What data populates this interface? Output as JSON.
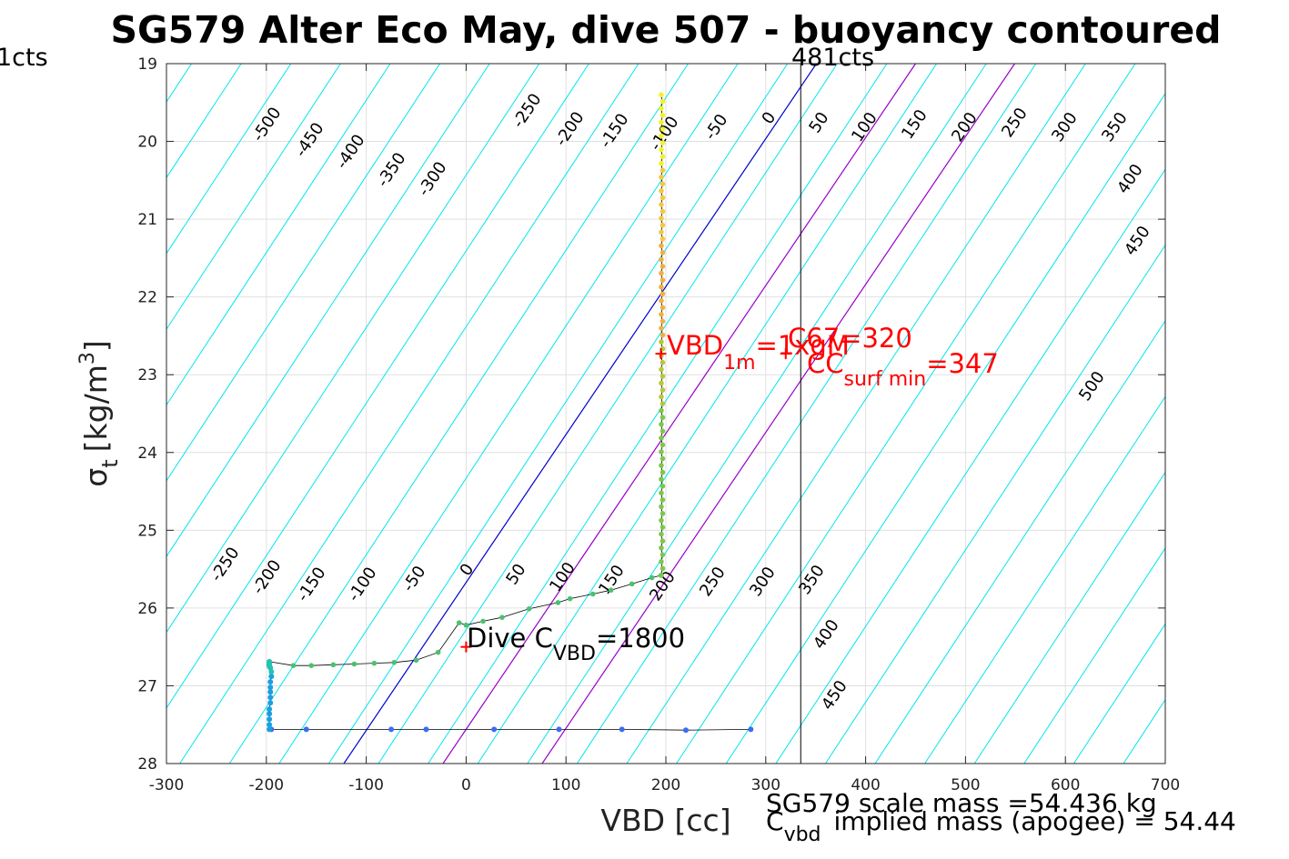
{
  "chart_data": {
    "type": "scatter",
    "title": "SG579 Alter Eco May, dive 507 - buoyancy contoured",
    "xlabel": "VBD [cc]",
    "ylabel_main": "σ",
    "ylabel_sub": "t",
    "ylabel_unit": "[kg/m",
    "ylabel_sup": "3",
    "ylabel_close": "]",
    "xlim": [
      -300,
      700
    ],
    "ylim": [
      28,
      19
    ],
    "xticks": [
      "-300",
      "-200",
      "-100",
      "0",
      "100",
      "200",
      "300",
      "400",
      "500",
      "600",
      "700"
    ],
    "yticks": [
      "19",
      "20",
      "21",
      "22",
      "23",
      "24",
      "25",
      "26",
      "27",
      "28"
    ],
    "grid": true,
    "contours": {
      "upper_labels": [
        "-500",
        "-450",
        "-400",
        "-350",
        "-300",
        "-250",
        "-200",
        "-150",
        "-100",
        "-50",
        "0",
        "50",
        "100",
        "150",
        "200",
        "250",
        "300",
        "350",
        "400",
        "450",
        "500"
      ],
      "lower_labels": [
        "-250",
        "-200",
        "-150",
        "-100",
        "-50",
        "0",
        "50",
        "100",
        "150",
        "200",
        "250",
        "300",
        "350",
        "400",
        "450"
      ]
    },
    "lines": {
      "vbd_zero": "#0000cc",
      "c_vbd": "#9900cc",
      "contour": "#00e5ee"
    },
    "vertical_line_x": 325,
    "cts_left": "1cts",
    "cts_right": "481cts",
    "annotations": {
      "vbd1m_main": "VBD",
      "vbd1m_sub": "1m",
      "vbd1m_rest": "=1xgM",
      "c67": "C67",
      "c67_val": "=320",
      "cc_main": "CC",
      "cc_sub": "surf min",
      "cc_val": "=347",
      "dive_main": "Dive C",
      "dive_sub": "VBD",
      "dive_val": "=1800"
    },
    "footer": {
      "scale_mass": "SG579 scale mass =54.436 kg",
      "cvbd_main": "C",
      "cvbd_sub": "vbd",
      "cvbd_rest": "implied mass (apogee) = 54.44"
    },
    "dive_track": {
      "x": [
        -197,
        -197,
        -197,
        -197,
        -197,
        -196,
        -196,
        -196,
        -196,
        -196,
        -195,
        -195,
        -196,
        -197,
        -197,
        -197,
        -197,
        -197,
        -197,
        -197,
        -197,
        -197
      ],
      "y": [
        27.56,
        27.5,
        27.43,
        27.36,
        27.3,
        27.22,
        27.15,
        27.08,
        27.02,
        26.95,
        26.88,
        26.82,
        26.77,
        26.75,
        26.74,
        26.73,
        26.73,
        26.72,
        26.71,
        26.7,
        26.7,
        26.69
      ]
    },
    "descent_horizontal": {
      "x": [
        -195,
        -160,
        -75,
        -40,
        28,
        93,
        156,
        220,
        285
      ],
      "y": [
        27.56,
        27.56,
        27.56,
        27.56,
        27.56,
        27.56,
        27.56,
        27.57,
        27.56
      ]
    },
    "climb_transition": {
      "x": [
        -173,
        -155,
        -133,
        -112,
        -92,
        -72,
        -50,
        -28,
        -7,
        0,
        17,
        36,
        63,
        92,
        104,
        127,
        145,
        166,
        186,
        195
      ],
      "y": [
        26.74,
        26.74,
        26.73,
        26.72,
        26.71,
        26.7,
        26.67,
        26.57,
        26.19,
        26.22,
        26.17,
        26.12,
        26.01,
        25.93,
        25.88,
        25.82,
        25.77,
        25.69,
        25.61,
        25.58
      ]
    },
    "vertical_track": {
      "x_min": 193,
      "x_max": 197,
      "y_top": 19.4,
      "y_bottom": 25.58
    },
    "markers": {
      "vbd1m": [
        195,
        22.73
      ],
      "c67": [
        320,
        22.73
      ],
      "dive": [
        0,
        26.5
      ]
    }
  }
}
